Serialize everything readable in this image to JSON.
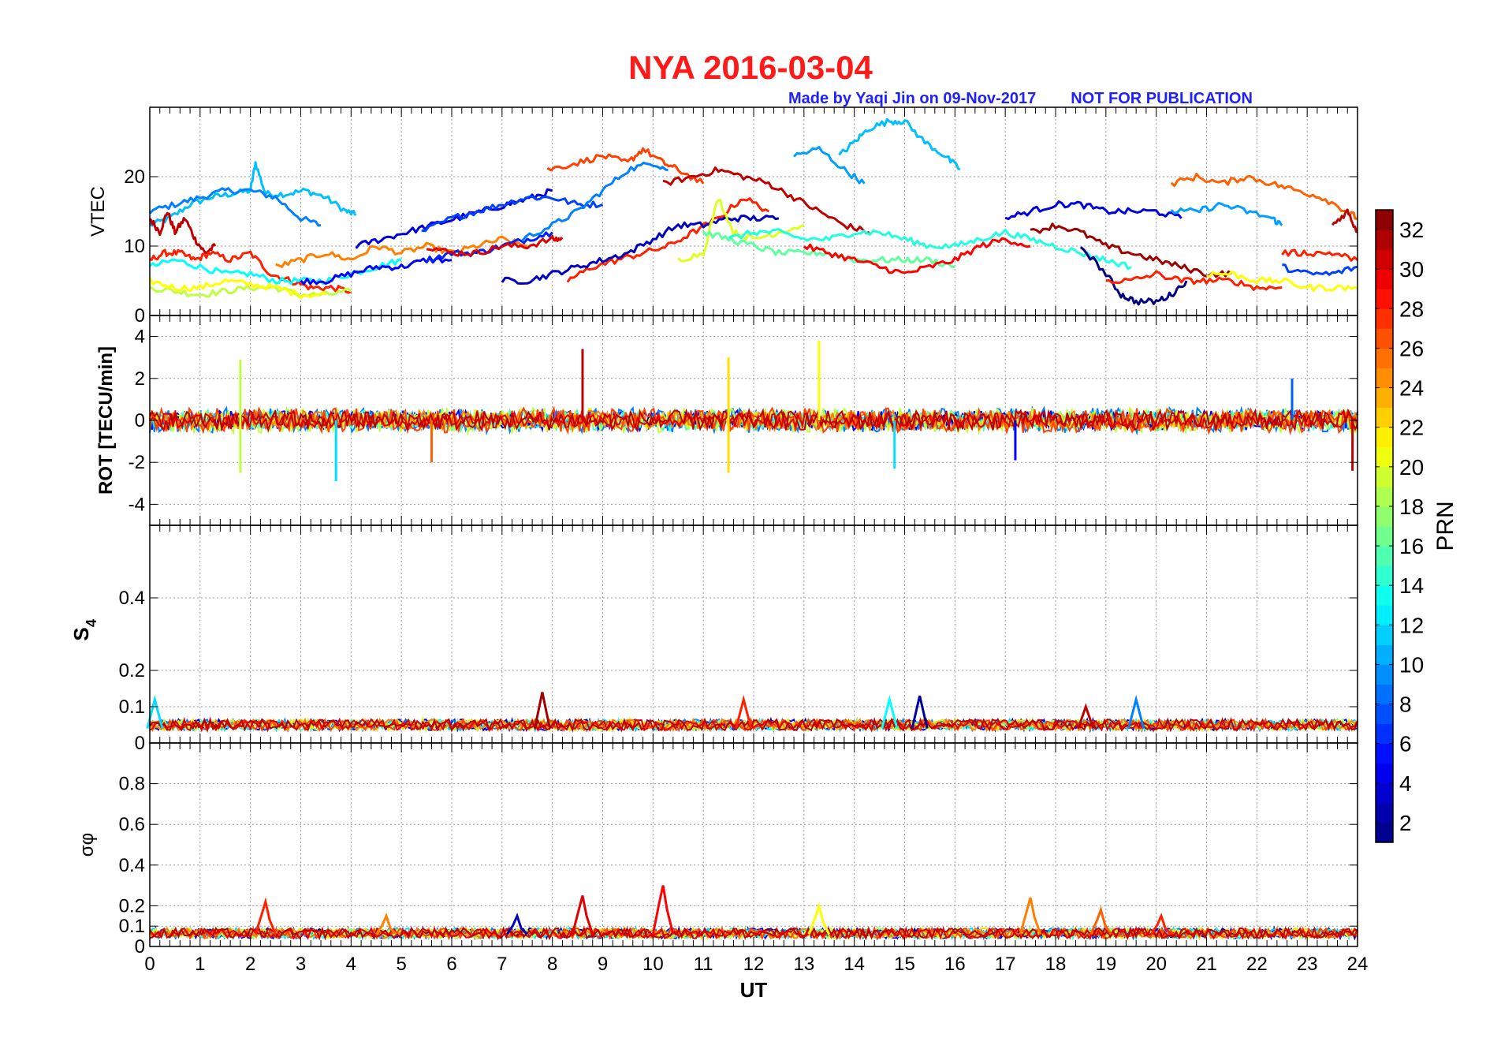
{
  "header": {
    "title": "NYA   2016-03-04",
    "credit": "Made by Yaqi Jin on 09-Nov-2017",
    "notice": "NOT FOR PUBLICATION"
  },
  "colors": {
    "title": "#ff1a1a",
    "credit": "#2020ff",
    "colormap": "jet"
  },
  "chart_data": [
    {
      "type": "line",
      "panel": "vtec",
      "ylabel": "VTEC",
      "xlim": [
        0,
        24
      ],
      "ylim": [
        0,
        30
      ],
      "yticks": [
        0,
        10,
        20
      ],
      "grid": true,
      "color_by": "PRN",
      "series": [
        {
          "prn": 11,
          "x": [
            0.0,
            0.4,
            0.8,
            1.2,
            1.6,
            2.0,
            2.1,
            2.3,
            2.7,
            3.1,
            3.5,
            3.9,
            4.1
          ],
          "y": [
            13,
            14,
            16,
            17,
            17.5,
            18,
            22,
            17.5,
            17.5,
            18,
            17,
            15,
            14.5
          ]
        },
        {
          "prn": 9,
          "x": [
            0.0,
            0.5,
            1.0,
            1.5,
            2.0,
            2.5,
            3.0,
            3.4
          ],
          "y": [
            15,
            16,
            17,
            18,
            18,
            17,
            14,
            13
          ]
        },
        {
          "prn": 31,
          "x": [
            0.0,
            0.2,
            0.35,
            0.5,
            0.7,
            0.9,
            1.1,
            1.3
          ],
          "y": [
            14,
            12,
            15,
            12,
            14,
            11,
            9,
            10
          ]
        },
        {
          "prn": 28,
          "x": [
            0.0,
            0.3,
            0.6,
            0.9,
            1.2,
            1.6,
            2.0,
            2.4,
            2.8,
            3.2,
            3.6,
            4.0
          ],
          "y": [
            8,
            9,
            9,
            8,
            9,
            8,
            9,
            6,
            5,
            4,
            4,
            3.5
          ]
        },
        {
          "prn": 13,
          "x": [
            0.0,
            0.5,
            1.0,
            1.5,
            2.0,
            2.5,
            3.0,
            3.5,
            4.0,
            4.5,
            5.0
          ],
          "y": [
            7,
            8,
            7,
            6,
            6,
            5,
            5,
            5,
            6,
            7,
            8
          ]
        },
        {
          "prn": 19,
          "x": [
            0.0,
            0.5,
            1.0,
            1.5,
            2.0,
            2.5,
            3.0,
            3.5,
            4.0
          ],
          "y": [
            4,
            3.5,
            3,
            3.5,
            4,
            4,
            3,
            3,
            3.5
          ]
        },
        {
          "prn": 21,
          "x": [
            0.0,
            0.5,
            1.0,
            1.5,
            2.0,
            2.5,
            3.0,
            3.5
          ],
          "y": [
            5,
            4,
            4,
            5,
            4.5,
            4,
            3,
            3
          ]
        },
        {
          "prn": 5,
          "x": [
            3.0,
            3.5,
            4.0,
            4.5,
            5.0,
            5.5,
            6.0
          ],
          "y": [
            5,
            5,
            6,
            7,
            7,
            8,
            8
          ]
        },
        {
          "prn": 25,
          "x": [
            2.5,
            3.0,
            3.5,
            4.0,
            4.5,
            5.0,
            5.5,
            6.0,
            6.5,
            7.0,
            7.5
          ],
          "y": [
            7,
            8,
            9,
            8,
            10,
            9,
            10,
            9,
            10,
            11,
            10
          ]
        },
        {
          "prn": 4,
          "x": [
            4.1,
            4.6,
            5.1,
            5.6,
            6.1,
            6.6,
            7.1,
            7.6,
            8.0
          ],
          "y": [
            10,
            11,
            12,
            13,
            14,
            15,
            16,
            17,
            18
          ]
        },
        {
          "prn": 7,
          "x": [
            5.4,
            6.0,
            6.5,
            7.0,
            7.5,
            8.0,
            8.5,
            9.0
          ],
          "y": [
            12,
            14,
            15,
            16,
            17,
            17,
            16,
            16
          ]
        },
        {
          "prn": 6,
          "x": [
            5.5,
            6.0,
            6.5,
            7.0,
            7.5,
            8.0
          ],
          "y": [
            8,
            9,
            9,
            10,
            11,
            12
          ]
        },
        {
          "prn": 30,
          "x": [
            5.5,
            6.0,
            6.5,
            7.0,
            7.5,
            8.0,
            8.2
          ],
          "y": [
            10,
            9,
            9,
            10,
            10,
            11,
            11
          ]
        },
        {
          "prn": 9,
          "x": [
            7.4,
            8.0,
            8.5,
            9.0,
            9.5,
            10.0,
            10.3
          ],
          "y": [
            11,
            13,
            15,
            18,
            21,
            22,
            21
          ]
        },
        {
          "prn": 27,
          "x": [
            7.9,
            8.5,
            9.0,
            9.5,
            9.8,
            10.2,
            10.5,
            11.0
          ],
          "y": [
            21,
            22,
            23,
            22,
            24,
            22,
            21,
            19
          ]
        },
        {
          "prn": 31,
          "x": [
            10.2,
            10.8,
            11.3,
            11.8,
            12.3,
            12.8,
            13.3,
            13.8,
            14.3
          ],
          "y": [
            19,
            20,
            21,
            20,
            19,
            17,
            15,
            13,
            12
          ]
        },
        {
          "prn": 10,
          "x": [
            12.8,
            13.3,
            13.8,
            14.2
          ],
          "y": [
            23,
            24,
            21,
            19
          ]
        },
        {
          "prn": 11,
          "x": [
            13.7,
            14.0,
            14.3,
            14.7,
            15.0,
            15.4,
            15.8,
            16.1
          ],
          "y": [
            23,
            25,
            27,
            28,
            28,
            25,
            23,
            21
          ]
        },
        {
          "prn": 28,
          "x": [
            8.3,
            8.8,
            9.3,
            9.8,
            10.3,
            10.8,
            11.3,
            11.8,
            12.3
          ],
          "y": [
            5,
            7,
            8,
            9,
            10,
            12,
            14,
            17,
            15
          ]
        },
        {
          "prn": 3,
          "x": [
            7.0,
            7.5,
            8.0,
            8.5,
            9.0,
            9.5,
            10.0,
            10.5,
            11.0,
            11.5,
            12.0,
            12.5
          ],
          "y": [
            5,
            5,
            6,
            7,
            8,
            9,
            11,
            13,
            13,
            14,
            14,
            14
          ]
        },
        {
          "prn": 20,
          "x": [
            10.5,
            11.0,
            11.3,
            11.6,
            12.0,
            12.5,
            13.0
          ],
          "y": [
            8,
            9,
            17,
            12,
            11,
            12,
            13
          ]
        },
        {
          "prn": 16,
          "x": [
            11.0,
            11.5,
            12.0,
            12.5,
            13.0,
            13.5,
            14.0,
            14.5,
            15.0,
            15.5,
            16.0
          ],
          "y": [
            12,
            11,
            10,
            9,
            9,
            9,
            8,
            8,
            8,
            8,
            7
          ]
        },
        {
          "prn": 29,
          "x": [
            13.0,
            13.5,
            14.0,
            14.5,
            15.0,
            15.5,
            16.0,
            16.5,
            17.0,
            17.5
          ],
          "y": [
            10,
            9,
            8,
            7,
            6,
            7,
            8,
            10,
            11,
            10
          ]
        },
        {
          "prn": 14,
          "x": [
            11.5,
            12.0,
            12.5,
            13.0,
            13.5,
            14.0,
            14.5,
            15.0,
            15.5,
            16.0,
            16.5,
            17.0,
            17.5,
            18.0,
            18.5,
            19.0,
            19.5
          ],
          "y": [
            11,
            12,
            12,
            11,
            11,
            12,
            12,
            11,
            10,
            10,
            11,
            12,
            11,
            10,
            9,
            8,
            7
          ]
        },
        {
          "prn": 4,
          "x": [
            17.0,
            17.5,
            18.0,
            18.5,
            19.0,
            19.5,
            20.0,
            20.5
          ],
          "y": [
            14,
            15,
            16,
            16,
            15,
            15,
            15,
            14
          ]
        },
        {
          "prn": 1,
          "x": [
            18.5,
            19.0,
            19.3,
            19.6,
            20.0,
            20.3,
            20.6
          ],
          "y": [
            10,
            6,
            3,
            2,
            2,
            3,
            5
          ]
        },
        {
          "prn": 32,
          "x": [
            17.5,
            18.0,
            18.5,
            19.0,
            19.5,
            20.0,
            20.5,
            21.0,
            21.5
          ],
          "y": [
            12,
            13,
            12,
            10,
            9,
            8,
            7,
            6,
            6
          ]
        },
        {
          "prn": 26,
          "x": [
            20.3,
            20.8,
            21.3,
            21.8,
            22.3,
            22.8,
            23.3,
            23.8,
            24.0
          ],
          "y": [
            19,
            20,
            19,
            20,
            19,
            18,
            17,
            15,
            14
          ]
        },
        {
          "prn": 10,
          "x": [
            20.3,
            20.8,
            21.3,
            21.8,
            22.3,
            22.5
          ],
          "y": [
            15,
            15,
            16,
            15,
            14,
            13
          ]
        },
        {
          "prn": 28,
          "x": [
            19.0,
            19.5,
            20.0,
            20.5,
            21.0,
            21.5,
            22.0,
            22.5
          ],
          "y": [
            5,
            5,
            6,
            5,
            5,
            5,
            4,
            4
          ]
        },
        {
          "prn": 21,
          "x": [
            21.0,
            21.5,
            22.0,
            22.5,
            23.0,
            23.5,
            24.0
          ],
          "y": [
            6,
            6,
            5,
            5,
            4,
            4,
            4
          ]
        },
        {
          "prn": 28,
          "x": [
            22.5,
            23.0,
            23.5,
            24.0
          ],
          "y": [
            9,
            9,
            9,
            8
          ]
        },
        {
          "prn": 7,
          "x": [
            22.5,
            23.0,
            23.5,
            24.0
          ],
          "y": [
            7,
            6,
            6,
            7
          ]
        },
        {
          "prn": 31,
          "x": [
            23.5,
            23.8,
            24.0
          ],
          "y": [
            13,
            15,
            12
          ]
        }
      ]
    },
    {
      "type": "line",
      "panel": "rot",
      "ylabel": "ROT [TECU/min]",
      "xlim": [
        0,
        24
      ],
      "ylim": [
        -5,
        5
      ],
      "yticks": [
        -4,
        -2,
        0,
        2,
        4
      ],
      "grid": true,
      "color_by": "PRN",
      "spikes": [
        {
          "prn": 19,
          "x": 1.8,
          "y": 2.9
        },
        {
          "prn": 19,
          "x": 1.8,
          "y": -2.5
        },
        {
          "prn": 12,
          "x": 3.7,
          "y": -2.9
        },
        {
          "prn": 26,
          "x": 5.6,
          "y": -2.0
        },
        {
          "prn": 31,
          "x": 8.6,
          "y": 3.4
        },
        {
          "prn": 22,
          "x": 11.5,
          "y": 3.0
        },
        {
          "prn": 22,
          "x": 11.5,
          "y": -2.5
        },
        {
          "prn": 21,
          "x": 13.3,
          "y": 3.8
        },
        {
          "prn": 12,
          "x": 14.8,
          "y": -2.3
        },
        {
          "prn": 5,
          "x": 17.2,
          "y": -1.9
        },
        {
          "prn": 8,
          "x": 22.7,
          "y": 2.0
        },
        {
          "prn": 31,
          "x": 23.9,
          "y": -2.4
        }
      ]
    },
    {
      "type": "line",
      "panel": "s4",
      "ylabel": "S4",
      "xlim": [
        0,
        24
      ],
      "ylim": [
        0,
        0.6
      ],
      "yticks": [
        0,
        0.1,
        0.2,
        0.4
      ],
      "grid": true,
      "color_by": "PRN",
      "peaks": [
        {
          "prn": 12,
          "x": 0.1,
          "y": 0.12
        },
        {
          "prn": 32,
          "x": 7.8,
          "y": 0.14
        },
        {
          "prn": 28,
          "x": 11.8,
          "y": 0.12
        },
        {
          "prn": 13,
          "x": 14.7,
          "y": 0.12
        },
        {
          "prn": 2,
          "x": 15.3,
          "y": 0.13
        },
        {
          "prn": 31,
          "x": 18.6,
          "y": 0.1
        },
        {
          "prn": 9,
          "x": 19.6,
          "y": 0.12
        }
      ]
    },
    {
      "type": "line",
      "panel": "sigma_phi",
      "ylabel": "σφ",
      "xlabel": "UT",
      "xlim": [
        0,
        24
      ],
      "ylim": [
        0,
        1
      ],
      "yticks": [
        0,
        0.1,
        0.2,
        0.4,
        0.6,
        0.8
      ],
      "xticks": [
        0,
        1,
        2,
        3,
        4,
        5,
        6,
        7,
        8,
        9,
        10,
        11,
        12,
        13,
        14,
        15,
        16,
        17,
        18,
        19,
        20,
        21,
        22,
        23,
        24
      ],
      "grid": true,
      "color_by": "PRN",
      "peaks": [
        {
          "prn": 28,
          "x": 2.3,
          "y": 0.22
        },
        {
          "prn": 25,
          "x": 4.7,
          "y": 0.15
        },
        {
          "prn": 3,
          "x": 7.3,
          "y": 0.15
        },
        {
          "prn": 30,
          "x": 8.6,
          "y": 0.25
        },
        {
          "prn": 29,
          "x": 10.2,
          "y": 0.3
        },
        {
          "prn": 21,
          "x": 13.3,
          "y": 0.2
        },
        {
          "prn": 25,
          "x": 17.5,
          "y": 0.24
        },
        {
          "prn": 26,
          "x": 18.9,
          "y": 0.18
        },
        {
          "prn": 28,
          "x": 20.1,
          "y": 0.15
        }
      ]
    },
    {
      "type": "heatmap",
      "panel": "colorbar",
      "label": "PRN",
      "range": [
        1,
        33
      ],
      "ticks": [
        2,
        4,
        6,
        8,
        10,
        12,
        14,
        16,
        18,
        20,
        22,
        24,
        26,
        28,
        30,
        32
      ]
    }
  ]
}
